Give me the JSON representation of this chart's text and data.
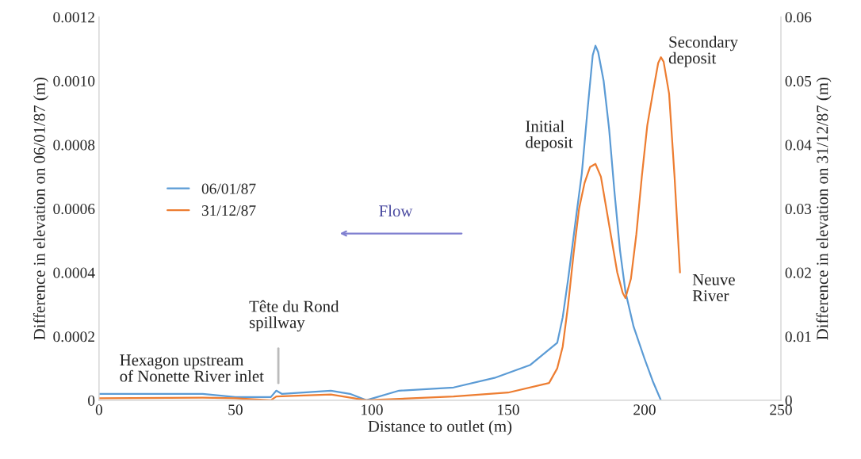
{
  "chart_data": {
    "type": "line",
    "xlabel": "Distance to outlet (m)",
    "ylabel": "Difference in elevation on 06/01/87 (m)",
    "y2label": "Difference in elevation on 31/12/87 (m)",
    "x": [
      0,
      38,
      50,
      63,
      65,
      67,
      85,
      92,
      98,
      110,
      130,
      145,
      158,
      168,
      170,
      172,
      175,
      177,
      179,
      181,
      182,
      183,
      185,
      187,
      189,
      191,
      193,
      196,
      200,
      203,
      206
    ],
    "series": [
      {
        "name": "06/01/87",
        "color": "#5b9bd5",
        "values": [
          2e-05,
          2e-05,
          1e-05,
          1e-05,
          3e-05,
          2e-05,
          3e-05,
          2e-05,
          0,
          3e-05,
          4e-05,
          7e-05,
          0.00011,
          0.00018,
          0.00026,
          0.00038,
          0.00058,
          0.00071,
          0.0009,
          0.00108,
          0.00111,
          0.00109,
          0.001,
          0.00085,
          0.00065,
          0.00047,
          0.00034,
          0.00023,
          0.00013,
          6e-05,
          0
        ]
      },
      {
        "name": "31/12/87",
        "color": "#ed7d31",
        "axis": "y2",
        "x": [
          0,
          38,
          50,
          63,
          65,
          85,
          98,
          130,
          150,
          165,
          168,
          170,
          172,
          174,
          176,
          178,
          180,
          182,
          184,
          186,
          188,
          190,
          192,
          193,
          195,
          197,
          199,
          201,
          203,
          205,
          206,
          207,
          209,
          211,
          213
        ],
        "values": [
          0.0003,
          0.0004,
          0.0003,
          0,
          0.0006,
          0.0009,
          0,
          0.0006,
          0.0012,
          0.0027,
          0.005,
          0.0084,
          0.015,
          0.023,
          0.03,
          0.034,
          0.0365,
          0.037,
          0.035,
          0.03,
          0.025,
          0.02,
          0.0168,
          0.016,
          0.019,
          0.026,
          0.035,
          0.043,
          0.048,
          0.0528,
          0.0537,
          0.053,
          0.048,
          0.035,
          0.02
        ]
      }
    ],
    "xlim": [
      0,
      250
    ],
    "xticks": [
      0,
      50,
      100,
      150,
      200,
      250
    ],
    "ylim": [
      0,
      0.0012
    ],
    "yticks": [
      0,
      0.0002,
      0.0004,
      0.0006,
      0.0008,
      {
        "value": 0.001,
        "label": "0.0010"
      },
      0.0012
    ],
    "y2lim": [
      0,
      0.06
    ],
    "y2ticks": [
      0,
      0.01,
      0.02,
      0.03,
      0.04,
      0.05,
      0.06
    ],
    "annotations": [
      "Hexagon upstream\nof Nonette River inlet",
      "Tête du Rond\nspillway",
      "Flow",
      "Initial\ndeposit",
      "Secondary\ndeposit",
      "Neuve\nRiver"
    ],
    "legend": "left",
    "grid": false,
    "marker": "none",
    "line_style": "solid"
  }
}
